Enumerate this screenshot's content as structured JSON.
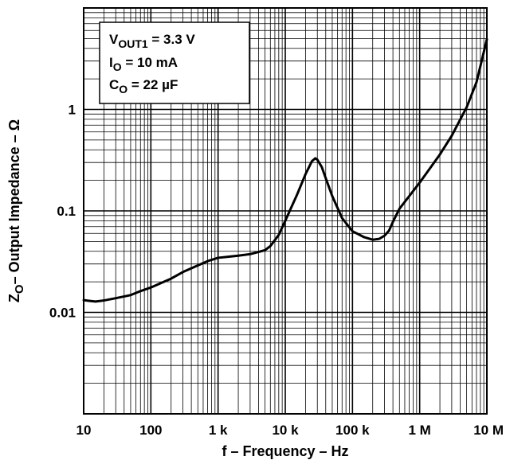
{
  "chart_data": {
    "type": "line",
    "x_scale": "log",
    "y_scale": "log",
    "xlim": [
      10,
      10000000
    ],
    "ylim": [
      0.001,
      10
    ],
    "grid": true,
    "xlabel": "f – Frequency – Hz",
    "ylabel": {
      "main": "Z",
      "sub": "O",
      "rest": "– Output Impedance – Ω"
    },
    "x_ticks": [
      {
        "value": 10,
        "label": "10"
      },
      {
        "value": 100,
        "label": "100"
      },
      {
        "value": 1000,
        "label": "1 k"
      },
      {
        "value": 10000,
        "label": "10 k"
      },
      {
        "value": 100000,
        "label": "100 k"
      },
      {
        "value": 1000000,
        "label": "1 M"
      },
      {
        "value": 10000000,
        "label": "10 M"
      }
    ],
    "y_ticks": [
      {
        "value": 0.01,
        "label": "0.01"
      },
      {
        "value": 0.1,
        "label": "0.1"
      },
      {
        "value": 1,
        "label": "1"
      }
    ],
    "annotation": [
      {
        "main": "V",
        "sub": "OUT1",
        "rest": " = 3.3 V"
      },
      {
        "main": "I",
        "sub": "O",
        "rest": " = 10 mA"
      },
      {
        "main": "C",
        "sub": "O",
        "rest": " = 22 µF"
      }
    ],
    "series": [
      {
        "x": [
          10,
          12,
          15,
          20,
          30,
          50,
          70,
          100,
          200,
          300,
          500,
          700,
          1000,
          1500,
          2000,
          3000,
          5000,
          6000,
          8000,
          10000,
          15000,
          20000,
          25000,
          28000,
          30000,
          35000,
          40000,
          50000,
          70000,
          100000,
          150000,
          200000,
          250000,
          300000,
          350000,
          400000,
          500000,
          700000,
          1000000,
          2000000,
          3000000,
          5000000,
          7000000,
          10000000
        ],
        "y": [
          0.0132,
          0.013,
          0.0128,
          0.0131,
          0.0138,
          0.0148,
          0.0162,
          0.0176,
          0.0215,
          0.025,
          0.029,
          0.032,
          0.0345,
          0.0355,
          0.0362,
          0.0375,
          0.041,
          0.045,
          0.058,
          0.08,
          0.145,
          0.23,
          0.31,
          0.33,
          0.32,
          0.27,
          0.21,
          0.14,
          0.085,
          0.063,
          0.055,
          0.052,
          0.053,
          0.057,
          0.064,
          0.078,
          0.105,
          0.14,
          0.19,
          0.36,
          0.55,
          1.05,
          1.85,
          4.9
        ]
      }
    ]
  }
}
